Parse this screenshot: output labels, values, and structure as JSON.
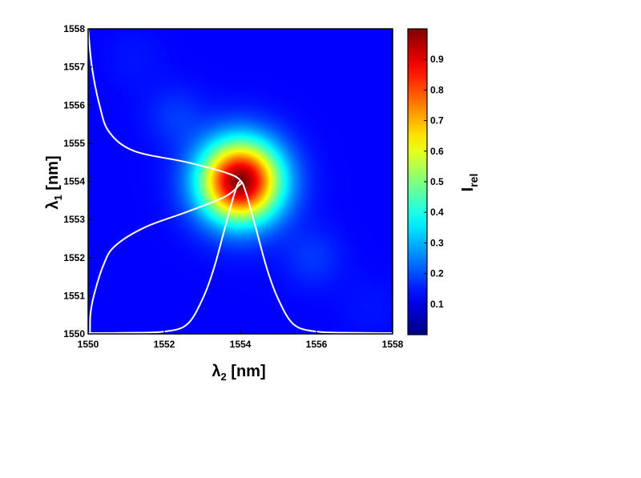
{
  "chart_data": {
    "type": "heatmap",
    "xlabel": {
      "greek": "λ",
      "sub": "2",
      "unit": " [nm]"
    },
    "ylabel": {
      "greek": "λ",
      "sub": "1",
      "unit": " [nm]"
    },
    "xlim": [
      1550,
      1558
    ],
    "ylim": [
      1550,
      1558
    ],
    "x_ticks": [
      "1550",
      "1552",
      "1554",
      "1556",
      "1558"
    ],
    "y_ticks": [
      "1550",
      "1551",
      "1552",
      "1553",
      "1554",
      "1555",
      "1556",
      "1557",
      "1558"
    ],
    "peak": {
      "x": 1554,
      "y": 1554,
      "value": 1.0,
      "width_nm": 0.75
    },
    "side_lobes": [
      {
        "x": 1552.3,
        "y": 1555.7,
        "value": 0.06
      },
      {
        "x": 1555.9,
        "y": 1552.0,
        "value": 0.06
      },
      {
        "x": 1551.2,
        "y": 1557.2,
        "value": 0.02
      },
      {
        "x": 1557.4,
        "y": 1550.7,
        "value": 0.02
      }
    ],
    "marginal_bottom": {
      "description": "spectrum along lambda2, drawn up from bottom edge",
      "x": [
        1550,
        1551,
        1552,
        1552.6,
        1553,
        1553.3,
        1553.6,
        1553.85,
        1554,
        1554.15,
        1554.4,
        1554.7,
        1555,
        1555.4,
        1556,
        1557,
        1558
      ],
      "y": [
        1550.02,
        1550.03,
        1550.06,
        1550.25,
        1550.9,
        1551.7,
        1552.8,
        1553.7,
        1554.0,
        1553.7,
        1552.8,
        1551.7,
        1550.9,
        1550.25,
        1550.06,
        1550.03,
        1550.02
      ]
    },
    "marginal_left": {
      "description": "spectrum along lambda1, drawn right from left edge",
      "y": [
        1550,
        1550.5,
        1551,
        1551.8,
        1552.3,
        1552.8,
        1553.2,
        1553.6,
        1553.9,
        1554.0,
        1554.2,
        1554.5,
        1554.8,
        1555.3,
        1556,
        1557,
        1558
      ],
      "x": [
        1550.05,
        1550.06,
        1550.15,
        1550.4,
        1550.7,
        1551.5,
        1552.6,
        1553.6,
        1553.97,
        1554.02,
        1553.7,
        1552.6,
        1551.2,
        1550.55,
        1550.3,
        1550.1,
        1550.0
      ]
    },
    "colorbar": {
      "label_main": "I",
      "label_sub": "rel",
      "range": [
        0,
        1
      ],
      "ticks": [
        "0.1",
        "0.2",
        "0.3",
        "0.4",
        "0.5",
        "0.6",
        "0.7",
        "0.8",
        "0.9"
      ],
      "colormap": "jet"
    },
    "grid": false,
    "legend": "none"
  }
}
